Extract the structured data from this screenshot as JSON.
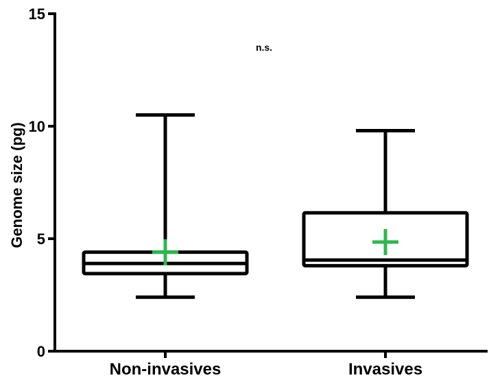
{
  "chart_data": {
    "type": "box",
    "ylabel": "Genome size (pg)",
    "ylim": [
      0,
      15
    ],
    "yticks": [
      0,
      5,
      10,
      15
    ],
    "ytick_labels": [
      "0",
      "5",
      "10",
      "15"
    ],
    "categories": [
      "Non-invasives",
      "Invasives"
    ],
    "boxes": [
      {
        "category": "Non-invasives",
        "min": 2.4,
        "q1": 3.45,
        "median": 3.9,
        "q3": 4.4,
        "max": 10.5,
        "mean": 4.4
      },
      {
        "category": "Invasives",
        "min": 2.4,
        "q1": 3.8,
        "median": 4.05,
        "q3": 6.15,
        "max": 9.8,
        "mean": 4.85
      }
    ],
    "annotation": "n.s.",
    "colors": {
      "box": "#000000",
      "mean_marker": "#2db84d"
    },
    "grid": false,
    "legend": "none"
  }
}
